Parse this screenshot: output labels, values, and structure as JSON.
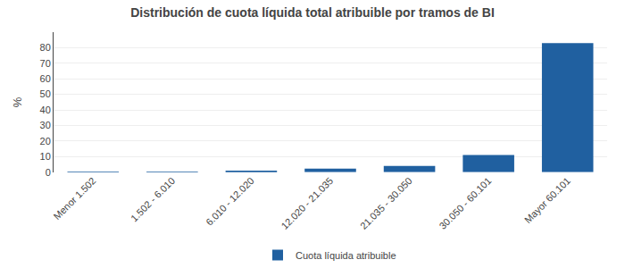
{
  "chart_data": {
    "type": "bar",
    "title": "Distribución de cuota líquida total atribuible por tramos de BI",
    "categories": [
      "Menor 1.502",
      "1.502 - 6.010",
      "6.010 - 12.020",
      "12.020 - 21.035",
      "21.035 - 30.050",
      "30.050 - 60.101",
      "Mayor 60.101"
    ],
    "series": [
      {
        "name": "Cuota líquida atribuible",
        "color": "#2060a0",
        "values": [
          0.05,
          0.05,
          0.5,
          2.2,
          4.0,
          11.0,
          83.0
        ]
      }
    ],
    "ylabel": "%",
    "ylim": [
      0,
      90
    ],
    "yticks": [
      0,
      10,
      20,
      30,
      40,
      50,
      60,
      70,
      80
    ],
    "grid": true,
    "legend": "bottom"
  }
}
